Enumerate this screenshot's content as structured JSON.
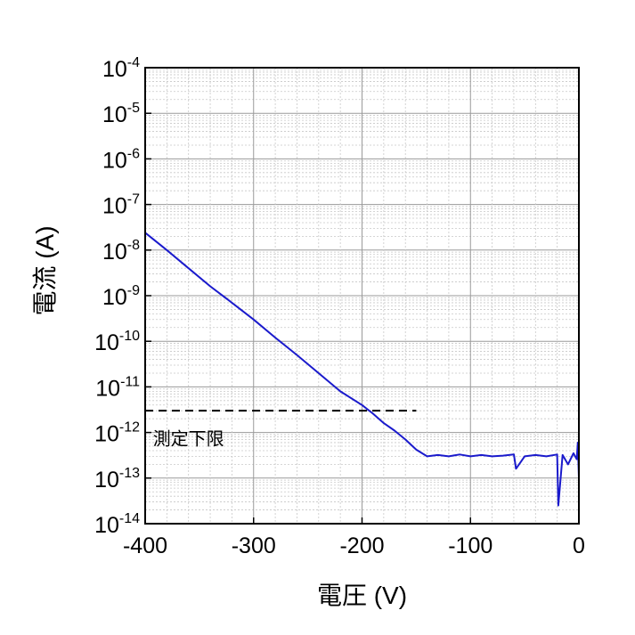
{
  "chart_data": {
    "type": "line",
    "xlabel": "電圧 (V)",
    "ylabel": "電流 (A)",
    "xlim": [
      -400,
      0
    ],
    "ylim": [
      1e-14,
      0.0001
    ],
    "yscale": "log",
    "grid": true,
    "x_ticks": [
      "-400",
      "-300",
      "-200",
      "-100",
      "0"
    ],
    "y_ticks": [
      {
        "base": "10",
        "exp": "-14"
      },
      {
        "base": "10",
        "exp": "-13"
      },
      {
        "base": "10",
        "exp": "-12"
      },
      {
        "base": "10",
        "exp": "-11"
      },
      {
        "base": "10",
        "exp": "-10"
      },
      {
        "base": "10",
        "exp": "-9"
      },
      {
        "base": "10",
        "exp": "-8"
      },
      {
        "base": "10",
        "exp": "-7"
      },
      {
        "base": "10",
        "exp": "-6"
      },
      {
        "base": "10",
        "exp": "-5"
      },
      {
        "base": "10",
        "exp": "-4"
      }
    ],
    "series": [
      {
        "color": "#1a1acc",
        "x": [
          -400,
          -380,
          -360,
          -340,
          -320,
          -300,
          -280,
          -260,
          -240,
          -220,
          -200,
          -190,
          -180,
          -170,
          -160,
          -150,
          -140,
          -130,
          -120,
          -110,
          -100,
          -90,
          -80,
          -70,
          -60,
          -58,
          -50,
          -40,
          -30,
          -20,
          -19,
          -15,
          -10,
          -5,
          -2,
          -1,
          0
        ],
        "y": [
          2.4e-08,
          1e-08,
          4e-09,
          1.6e-09,
          7e-10,
          3e-10,
          1.2e-10,
          5e-11,
          2e-11,
          8e-12,
          4e-12,
          2.6e-12,
          1.6e-12,
          1.1e-12,
          7e-13,
          4.2e-13,
          3e-13,
          3.2e-13,
          3e-13,
          3.3e-13,
          3e-13,
          3.2e-13,
          3e-13,
          3.1e-13,
          3.3e-13,
          1.6e-13,
          3e-13,
          3.2e-13,
          3e-13,
          3.3e-13,
          2.5e-14,
          3.2e-13,
          2e-13,
          3.5e-13,
          2.6e-13,
          6e-13,
          1e-13
        ]
      }
    ],
    "reference_line": {
      "y": 3e-12,
      "style": "dashed",
      "color": "#000000"
    },
    "annotations": [
      {
        "text": "測定下限",
        "x": -360,
        "y": 1e-12
      }
    ]
  }
}
